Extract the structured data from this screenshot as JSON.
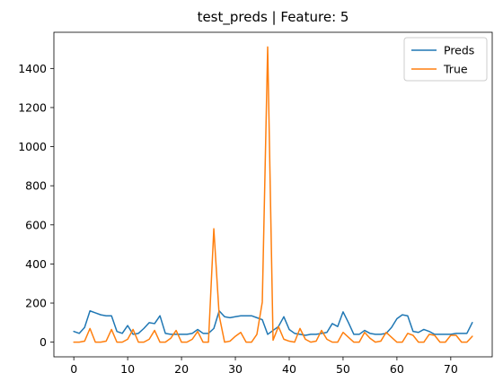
{
  "chart_data": {
    "type": "line",
    "title": "test_preds | Feature: 5",
    "xlabel": "",
    "ylabel": "",
    "xlim": [
      -3.7,
      77.7
    ],
    "ylim": [
      -75,
      1585
    ],
    "x_ticks": [
      0,
      10,
      20,
      30,
      40,
      50,
      60,
      70
    ],
    "y_ticks": [
      0,
      200,
      400,
      600,
      800,
      1000,
      1200,
      1400
    ],
    "grid": false,
    "legend_position": "top-right",
    "series": [
      {
        "name": "Preds",
        "color": "#1f77b4",
        "values": [
          55,
          45,
          75,
          160,
          150,
          140,
          135,
          135,
          55,
          45,
          85,
          40,
          45,
          70,
          100,
          95,
          135,
          45,
          40,
          40,
          40,
          40,
          45,
          65,
          45,
          45,
          70,
          160,
          130,
          125,
          130,
          135,
          135,
          135,
          125,
          115,
          40,
          60,
          80,
          130,
          65,
          45,
          40,
          35,
          40,
          40,
          45,
          50,
          95,
          80,
          155,
          100,
          40,
          40,
          60,
          45,
          40,
          40,
          45,
          75,
          120,
          140,
          135,
          55,
          50,
          65,
          55,
          40,
          40,
          40,
          40,
          45,
          45,
          45,
          100
        ]
      },
      {
        "name": "True",
        "color": "#ff7f0e",
        "values": [
          0,
          0,
          5,
          70,
          0,
          0,
          5,
          65,
          0,
          0,
          15,
          65,
          0,
          0,
          15,
          60,
          0,
          0,
          20,
          60,
          0,
          0,
          15,
          55,
          0,
          0,
          580,
          135,
          0,
          5,
          30,
          50,
          0,
          0,
          40,
          205,
          1510,
          10,
          80,
          15,
          5,
          0,
          70,
          15,
          0,
          5,
          60,
          15,
          0,
          0,
          50,
          25,
          0,
          0,
          50,
          20,
          0,
          5,
          50,
          25,
          0,
          0,
          45,
          35,
          0,
          0,
          40,
          35,
          0,
          0,
          35,
          35,
          0,
          0,
          30
        ]
      }
    ]
  }
}
